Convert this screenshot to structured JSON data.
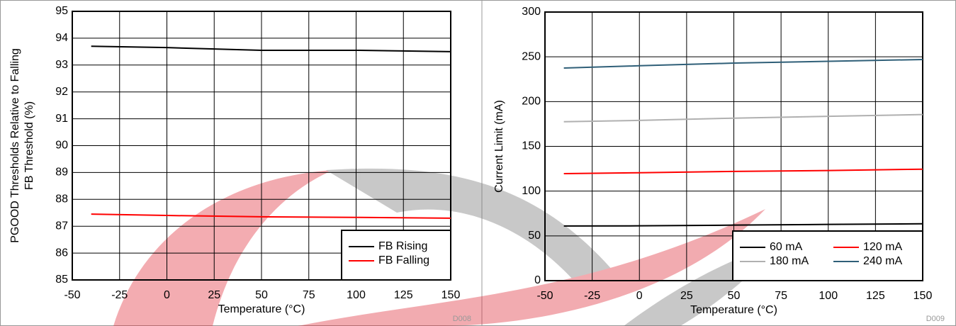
{
  "chart_data": [
    {
      "type": "line",
      "ylabel": [
        "PGOOD Thresholds Relative to Falling",
        "FB Threshold (%)"
      ],
      "xlabel": "Temperature (°C)",
      "note": "D008",
      "x": [
        -40,
        0,
        50,
        100,
        150
      ],
      "series": [
        {
          "name": "FB Rising",
          "color": "#000000",
          "values": [
            93.7,
            93.65,
            93.55,
            93.55,
            93.5
          ]
        },
        {
          "name": "FB Falling",
          "color": "#ff0000",
          "values": [
            87.45,
            87.4,
            87.35,
            87.33,
            87.3
          ]
        }
      ],
      "xlim": [
        -50,
        150
      ],
      "xticks": [
        -50,
        -25,
        0,
        25,
        50,
        75,
        100,
        125,
        150
      ],
      "ylim": [
        85,
        95
      ],
      "yticks": [
        85,
        86,
        87,
        88,
        89,
        90,
        91,
        92,
        93,
        94,
        95
      ],
      "grid": true,
      "legend": "lower right",
      "legend_columns": 1
    },
    {
      "type": "line",
      "ylabel": [
        "Current Limit (mA)"
      ],
      "xlabel": "Temperature (°C)",
      "note": "D009",
      "x": [
        -40,
        0,
        50,
        100,
        150
      ],
      "series": [
        {
          "name": "60 mA",
          "color": "#000000",
          "values": [
            61,
            61.2,
            62,
            62.8,
            63.5
          ]
        },
        {
          "name": "120 mA",
          "color": "#ff0000",
          "values": [
            119.5,
            120.5,
            122,
            123,
            124.5
          ]
        },
        {
          "name": "180 mA",
          "color": "#b0b0b0",
          "values": [
            177.5,
            179,
            181.5,
            183.5,
            185.5
          ]
        },
        {
          "name": "240 mA",
          "color": "#2f5f78",
          "values": [
            237.5,
            240,
            243,
            245,
            247
          ]
        }
      ],
      "xlim": [
        -50,
        150
      ],
      "xticks": [
        -50,
        -25,
        0,
        25,
        50,
        75,
        100,
        125,
        150
      ],
      "ylim": [
        0,
        300
      ],
      "yticks": [
        0,
        50,
        100,
        150,
        200,
        250,
        300
      ],
      "grid": true,
      "legend": "lower right",
      "legend_columns": 2
    }
  ]
}
